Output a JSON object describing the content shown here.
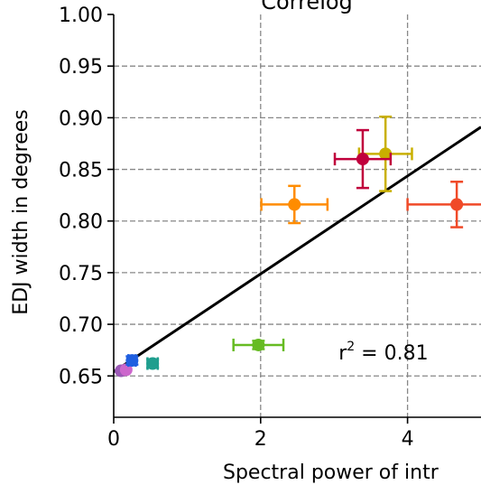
{
  "chart_data": {
    "type": "scatter",
    "title": "Correlog",
    "xlabel": "Spectral power of intr",
    "ylabel": "EDJ width in degrees",
    "xlim": [
      0,
      5
    ],
    "ylim": [
      0.61,
      1.0
    ],
    "x_ticks": [
      {
        "value": 0,
        "label": "0"
      },
      {
        "value": 2,
        "label": "2"
      },
      {
        "value": 4,
        "label": "4"
      }
    ],
    "y_ticks": [
      {
        "value": 0.65,
        "label": "0.65"
      },
      {
        "value": 0.7,
        "label": "0.70"
      },
      {
        "value": 0.75,
        "label": "0.75"
      },
      {
        "value": 0.8,
        "label": "0.80"
      },
      {
        "value": 0.85,
        "label": "0.85"
      },
      {
        "value": 0.9,
        "label": "0.90"
      },
      {
        "value": 0.95,
        "label": "0.95"
      },
      {
        "value": 1.0,
        "label": "1.00"
      }
    ],
    "grid": true,
    "annotation": {
      "base": "r",
      "sup": "2",
      "rest": " = 0.81",
      "x": 3.0,
      "y": 0.666
    },
    "fit_line": {
      "x": [
        0,
        5
      ],
      "y": [
        0.654,
        0.891
      ],
      "color": "#000000"
    },
    "points": [
      {
        "x": 0.1,
        "y": 0.655,
        "xerr": 0.0,
        "yerr": 0.0,
        "color": "#9b59b6"
      },
      {
        "x": 0.17,
        "y": 0.656,
        "xerr": 0.0,
        "yerr": 0.0,
        "color": "#cc66cc"
      },
      {
        "x": 0.25,
        "y": 0.665,
        "xerr": 0.05,
        "yerr": 0.004,
        "color": "#1f5fe0"
      },
      {
        "x": 0.53,
        "y": 0.662,
        "xerr": 0.07,
        "yerr": 0.004,
        "color": "#1f9e8e"
      },
      {
        "x": 1.97,
        "y": 0.68,
        "xerr": 0.34,
        "yerr": 0.004,
        "color": "#66bb22"
      },
      {
        "x": 2.46,
        "y": 0.816,
        "xerr": 0.45,
        "yerr": 0.018,
        "color": "#ff8c00"
      },
      {
        "x": 3.7,
        "y": 0.865,
        "xerr": 0.36,
        "yerr": 0.036,
        "color": "#c9b000"
      },
      {
        "x": 3.39,
        "y": 0.86,
        "xerr": 0.38,
        "yerr": 0.028,
        "color": "#c0003c"
      },
      {
        "x": 4.67,
        "y": 0.816,
        "xerr": 0.67,
        "yerr": 0.022,
        "color": "#f04a28"
      }
    ]
  }
}
